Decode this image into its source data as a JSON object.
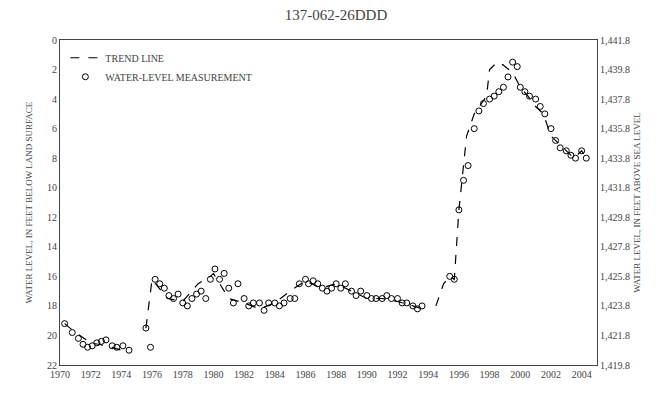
{
  "chart_data": {
    "type": "scatter",
    "title": "137-062-26DDD",
    "ylabel": "WATER LEVEL, IN FEET BELOW LAND SURFACE",
    "y2label": "WATER LEVEL, IN FEET ABOVE SEA LEVEL",
    "xlim": [
      1970,
      2005
    ],
    "xticks": [
      1970,
      1972,
      1974,
      1976,
      1978,
      1980,
      1982,
      1984,
      1986,
      1988,
      1990,
      1992,
      1994,
      1996,
      1998,
      2000,
      2002,
      2004
    ],
    "ylim": [
      22,
      0
    ],
    "yticks": [
      0,
      2,
      4,
      6,
      8,
      10,
      12,
      14,
      16,
      18,
      20,
      22
    ],
    "y2lim": [
      1419.8,
      1441.8
    ],
    "y2ticks": [
      {
        "value": 1419.8,
        "label": "1,419.8"
      },
      {
        "value": 1421.8,
        "label": "1,421.8"
      },
      {
        "value": 1423.8,
        "label": "1,423.8"
      },
      {
        "value": 1425.8,
        "label": "1,425.8"
      },
      {
        "value": 1427.8,
        "label": "1,427.8"
      },
      {
        "value": 1429.8,
        "label": "1,429.8"
      },
      {
        "value": 1431.8,
        "label": "1,431.8"
      },
      {
        "value": 1433.8,
        "label": "1,433.8"
      },
      {
        "value": 1435.8,
        "label": "1,435.8"
      },
      {
        "value": 1437.8,
        "label": "1,437.8"
      },
      {
        "value": 1439.8,
        "label": "1,439.8"
      },
      {
        "value": 1441.8,
        "label": "1,441.8"
      }
    ],
    "grid": false,
    "legend": "upper left",
    "series": [
      {
        "name": "TREND LINE",
        "type": "line",
        "line_style": "dashed",
        "color": "black",
        "x": [
          1970.3,
          1971.0,
          1972.0,
          1973.0,
          1974.0,
          1974.5,
          null,
          1975.6,
          1976.0,
          1977.0,
          1978.0,
          1979.0,
          1979.8,
          1980.0,
          1981.0,
          1982.0,
          1983.0,
          1984.0,
          1985.0,
          1986.0,
          1987.0,
          1988.0,
          1989.0,
          1990.0,
          1991.0,
          1992.0,
          1993.0,
          1993.6,
          null,
          1994.5,
          1995.0,
          1995.4,
          1995.7,
          1996.0,
          1996.5,
          1997.0,
          1997.5,
          1997.8,
          1998.0,
          1998.5,
          1998.9,
          1999.0,
          1999.5,
          1999.8,
          2000.0,
          2000.5,
          2001.0,
          2001.5,
          2002.0,
          2002.5,
          2003.0,
          2003.5,
          2004.0,
          2004.3
        ],
        "values": [
          19.2,
          19.8,
          20.5,
          20.7,
          21.0,
          21.0,
          null,
          19.5,
          16.2,
          17.5,
          17.7,
          16.5,
          16.0,
          15.8,
          17.5,
          17.8,
          18.2,
          17.8,
          17.0,
          16.3,
          16.8,
          16.5,
          17.0,
          17.5,
          17.5,
          17.7,
          18.0,
          18.2,
          null,
          18.0,
          16.5,
          16.0,
          16.2,
          11.5,
          6.5,
          5.0,
          4.3,
          3.8,
          2.0,
          1.5,
          1.7,
          1.8,
          2.2,
          2.8,
          3.2,
          3.8,
          4.5,
          5.0,
          6.5,
          7.0,
          7.5,
          8.0,
          7.5,
          8.0
        ]
      },
      {
        "name": "WATER-LEVEL MEASUREMENT",
        "type": "scatter",
        "marker": "circle-open",
        "color": "black",
        "x": [
          1970.3,
          1970.8,
          1971.2,
          1971.5,
          1971.8,
          1972.1,
          1972.4,
          1972.7,
          1973.0,
          1973.4,
          1973.7,
          1974.1,
          1974.5,
          1975.6,
          1975.9,
          1976.2,
          1976.5,
          1976.8,
          1977.1,
          1977.4,
          1977.7,
          1978.0,
          1978.3,
          1978.6,
          1978.9,
          1979.2,
          1979.5,
          1979.8,
          1980.1,
          1980.4,
          1980.7,
          1981.0,
          1981.3,
          1981.6,
          1982.0,
          1982.3,
          1982.6,
          1983.0,
          1983.3,
          1983.6,
          1984.0,
          1984.3,
          1984.6,
          1985.0,
          1985.3,
          1985.6,
          1986.0,
          1986.2,
          1986.5,
          1986.8,
          1987.1,
          1987.4,
          1987.7,
          1988.0,
          1988.3,
          1988.6,
          1989.0,
          1989.3,
          1989.6,
          1990.0,
          1990.3,
          1990.6,
          1991.0,
          1991.3,
          1991.6,
          1992.0,
          1992.3,
          1992.6,
          1993.0,
          1993.3,
          1993.6,
          1995.4,
          1995.7,
          1996.0,
          1996.3,
          1996.6,
          1997.0,
          1997.3,
          1997.6,
          1998.0,
          1998.3,
          1998.6,
          1998.9,
          1999.2,
          1999.5,
          1999.8,
          2000.0,
          2000.3,
          2000.6,
          2001.0,
          2001.3,
          2001.6,
          2002.0,
          2002.3,
          2002.6,
          2003.0,
          2003.3,
          2003.6,
          2004.0,
          2004.3
        ],
        "values": [
          19.2,
          19.8,
          20.2,
          20.6,
          20.8,
          20.7,
          20.5,
          20.4,
          20.3,
          20.7,
          20.8,
          20.7,
          21.0,
          19.5,
          20.8,
          16.2,
          16.5,
          16.8,
          17.3,
          17.5,
          17.2,
          17.8,
          18.0,
          17.5,
          17.2,
          17.0,
          17.5,
          16.2,
          15.5,
          16.2,
          15.8,
          16.8,
          17.8,
          16.5,
          17.5,
          18.0,
          17.8,
          17.8,
          18.3,
          17.8,
          17.8,
          18.0,
          17.8,
          17.5,
          17.5,
          16.5,
          16.2,
          16.5,
          16.3,
          16.5,
          16.8,
          17.0,
          16.8,
          16.5,
          16.8,
          16.5,
          17.0,
          17.3,
          17.0,
          17.3,
          17.5,
          17.5,
          17.5,
          17.3,
          17.5,
          17.5,
          17.8,
          17.8,
          18.0,
          18.2,
          18.0,
          16.0,
          16.2,
          11.5,
          9.5,
          8.5,
          6.0,
          4.8,
          4.3,
          4.0,
          3.8,
          3.5,
          3.2,
          2.5,
          1.5,
          1.8,
          3.2,
          3.5,
          3.8,
          4.0,
          4.5,
          5.0,
          6.0,
          6.8,
          7.3,
          7.5,
          7.8,
          8.0,
          7.5,
          8.0
        ]
      }
    ]
  }
}
